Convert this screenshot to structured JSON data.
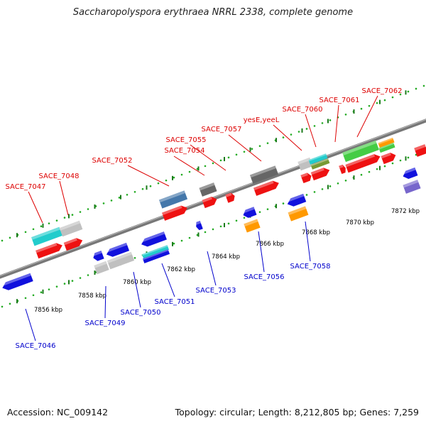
{
  "title": "Saccharopolyspora erythraea NRRL 2338, complete genome",
  "accession": "Accession: NC_009142",
  "summary": "Topology: circular; Length: 8,212,805 bp; Genes: 7,259",
  "colors": {
    "forward_label": "#dd0000",
    "reverse_label": "#0000cc",
    "backbone": "#777777",
    "dots": "#22aa22"
  },
  "kbp_ticks": [
    "7856 kbp",
    "7858 kbp",
    "7860 kbp",
    "7862 kbp",
    "7864 kbp",
    "7866 kbp",
    "7868 kbp",
    "7870 kbp",
    "7872 kbp"
  ],
  "forward_labels": [
    "SACE_7047",
    "SACE_7048",
    "SACE_7052",
    "SACE_7054",
    "SACE_7055",
    "SACE_7057",
    "yesE,yeeL",
    "SACE_7060",
    "SACE_7061",
    "SACE_7062"
  ],
  "reverse_labels": [
    "SACE_7046",
    "SACE_7049",
    "SACE_7050",
    "SACE_7051",
    "SACE_7053",
    "SACE_7056",
    "SACE_7058"
  ]
}
